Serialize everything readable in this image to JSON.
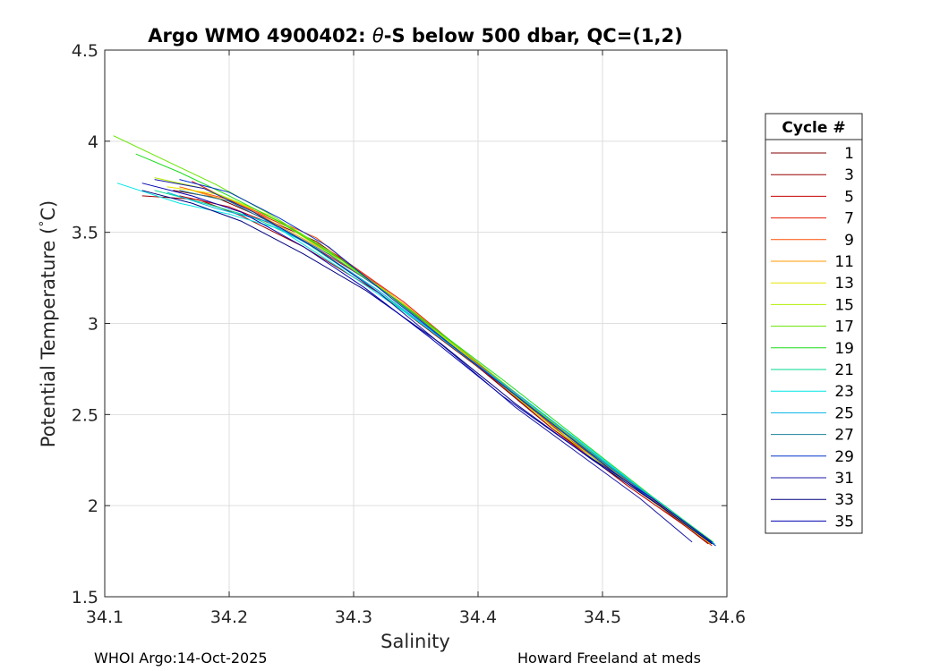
{
  "chart_data": {
    "type": "line",
    "title": {
      "prefix": "Argo WMO 4900402: ",
      "theta": "θ",
      "suffix": "-S below 500 dbar,  QC=(1,2)"
    },
    "xlabel": "Salinity",
    "ylabel": {
      "main": "Potential Temperature (",
      "deg": "°",
      "unit": "C)"
    },
    "xlim": [
      34.1,
      34.6
    ],
    "ylim": [
      1.5,
      4.5
    ],
    "xticks": [
      "34.1",
      "34.2",
      "34.3",
      "34.4",
      "34.5",
      "34.6"
    ],
    "yticks": [
      "1.5",
      "2",
      "2.5",
      "3",
      "3.5",
      "4",
      "4.5"
    ],
    "grid": true,
    "legend": {
      "title": "Cycle #",
      "position": "right-outside"
    },
    "series": [
      {
        "name": "1",
        "color": "#800000",
        "points": [
          [
            34.155,
            3.73
          ],
          [
            34.19,
            3.69
          ],
          [
            34.22,
            3.6
          ],
          [
            34.27,
            3.45
          ],
          [
            34.33,
            3.16
          ],
          [
            34.4,
            2.76
          ],
          [
            34.46,
            2.42
          ],
          [
            34.52,
            2.13
          ],
          [
            34.586,
            1.79
          ]
        ]
      },
      {
        "name": "3",
        "color": "#9a0000",
        "points": [
          [
            34.13,
            3.7
          ],
          [
            34.175,
            3.68
          ],
          [
            34.21,
            3.59
          ],
          [
            34.26,
            3.42
          ],
          [
            34.32,
            3.17
          ],
          [
            34.4,
            2.76
          ],
          [
            34.47,
            2.39
          ],
          [
            34.53,
            2.08
          ],
          [
            34.585,
            1.79
          ]
        ]
      },
      {
        "name": "5",
        "color": "#c80000",
        "points": [
          [
            34.16,
            3.7
          ],
          [
            34.2,
            3.64
          ],
          [
            34.24,
            3.53
          ],
          [
            34.28,
            3.37
          ],
          [
            34.33,
            3.16
          ],
          [
            34.4,
            2.77
          ],
          [
            34.46,
            2.42
          ],
          [
            34.52,
            2.11
          ],
          [
            34.587,
            1.79
          ]
        ]
      },
      {
        "name": "7",
        "color": "#e61a00",
        "points": [
          [
            34.17,
            3.78
          ],
          [
            34.205,
            3.66
          ],
          [
            34.25,
            3.52
          ],
          [
            34.29,
            3.36
          ],
          [
            34.34,
            3.12
          ],
          [
            34.4,
            2.78
          ],
          [
            34.47,
            2.38
          ],
          [
            34.53,
            2.09
          ],
          [
            34.588,
            1.78
          ]
        ]
      },
      {
        "name": "9",
        "color": "#ff4d00",
        "points": [
          [
            34.16,
            3.75
          ],
          [
            34.2,
            3.68
          ],
          [
            34.24,
            3.56
          ],
          [
            34.27,
            3.47
          ],
          [
            34.3,
            3.31
          ],
          [
            34.35,
            3.04
          ],
          [
            34.42,
            2.67
          ],
          [
            34.48,
            2.35
          ],
          [
            34.54,
            2.04
          ],
          [
            34.588,
            1.8
          ]
        ]
      },
      {
        "name": "11",
        "color": "#ff9900",
        "points": [
          [
            34.17,
            3.73
          ],
          [
            34.21,
            3.65
          ],
          [
            34.25,
            3.5
          ],
          [
            34.29,
            3.35
          ],
          [
            34.34,
            3.11
          ],
          [
            34.41,
            2.73
          ],
          [
            34.48,
            2.35
          ],
          [
            34.54,
            2.04
          ],
          [
            34.588,
            1.79
          ]
        ]
      },
      {
        "name": "13",
        "color": "#e6e600",
        "points": [
          [
            34.15,
            3.75
          ],
          [
            34.19,
            3.71
          ],
          [
            34.23,
            3.6
          ],
          [
            34.27,
            3.43
          ],
          [
            34.33,
            3.16
          ],
          [
            34.4,
            2.77
          ],
          [
            34.47,
            2.39
          ],
          [
            34.53,
            2.08
          ],
          [
            34.587,
            1.79
          ]
        ]
      },
      {
        "name": "15",
        "color": "#b3f000",
        "points": [
          [
            34.14,
            3.8
          ],
          [
            34.18,
            3.74
          ],
          [
            34.22,
            3.63
          ],
          [
            34.26,
            3.48
          ],
          [
            34.32,
            3.2
          ],
          [
            34.4,
            2.77
          ],
          [
            34.46,
            2.43
          ],
          [
            34.52,
            2.12
          ],
          [
            34.587,
            1.8
          ]
        ]
      },
      {
        "name": "17",
        "color": "#66e600",
        "points": [
          [
            34.107,
            4.03
          ],
          [
            34.15,
            3.89
          ],
          [
            34.19,
            3.76
          ],
          [
            34.23,
            3.61
          ],
          [
            34.28,
            3.4
          ],
          [
            34.34,
            3.1
          ],
          [
            34.41,
            2.73
          ],
          [
            34.47,
            2.4
          ],
          [
            34.53,
            2.09
          ],
          [
            34.588,
            1.8
          ]
        ]
      },
      {
        "name": "19",
        "color": "#1adc1a",
        "points": [
          [
            34.125,
            3.93
          ],
          [
            34.16,
            3.83
          ],
          [
            34.2,
            3.7
          ],
          [
            34.24,
            3.56
          ],
          [
            34.29,
            3.35
          ],
          [
            34.35,
            3.05
          ],
          [
            34.42,
            2.69
          ],
          [
            34.48,
            2.37
          ],
          [
            34.54,
            2.05
          ],
          [
            34.589,
            1.8
          ]
        ]
      },
      {
        "name": "21",
        "color": "#00d98c",
        "points": [
          [
            34.14,
            3.73
          ],
          [
            34.18,
            3.66
          ],
          [
            34.22,
            3.58
          ],
          [
            34.26,
            3.45
          ],
          [
            34.31,
            3.22
          ],
          [
            34.37,
            2.92
          ],
          [
            34.43,
            2.61
          ],
          [
            34.49,
            2.29
          ],
          [
            34.55,
            2.0
          ],
          [
            34.59,
            1.79
          ]
        ]
      },
      {
        "name": "23",
        "color": "#00e6e6",
        "points": [
          [
            34.11,
            3.77
          ],
          [
            34.16,
            3.66
          ],
          [
            34.2,
            3.6
          ],
          [
            34.24,
            3.52
          ],
          [
            34.29,
            3.3
          ],
          [
            34.35,
            3.02
          ],
          [
            34.42,
            2.67
          ],
          [
            34.49,
            2.31
          ],
          [
            34.55,
            1.99
          ],
          [
            34.59,
            1.79
          ]
        ]
      },
      {
        "name": "25",
        "color": "#00b3e6",
        "points": [
          [
            34.15,
            3.72
          ],
          [
            34.19,
            3.63
          ],
          [
            34.23,
            3.56
          ],
          [
            34.27,
            3.41
          ],
          [
            34.32,
            3.18
          ],
          [
            34.38,
            2.87
          ],
          [
            34.44,
            2.57
          ],
          [
            34.5,
            2.25
          ],
          [
            34.55,
            1.99
          ],
          [
            34.59,
            1.79
          ]
        ]
      },
      {
        "name": "27",
        "color": "#1a8099",
        "points": [
          [
            34.16,
            3.73
          ],
          [
            34.2,
            3.67
          ],
          [
            34.24,
            3.53
          ],
          [
            34.28,
            3.38
          ],
          [
            34.33,
            3.15
          ],
          [
            34.39,
            2.82
          ],
          [
            34.45,
            2.5
          ],
          [
            34.51,
            2.19
          ],
          [
            34.56,
            1.94
          ],
          [
            34.591,
            1.78
          ]
        ]
      },
      {
        "name": "29",
        "color": "#0033cc",
        "points": [
          [
            34.16,
            3.79
          ],
          [
            34.2,
            3.72
          ],
          [
            34.24,
            3.58
          ],
          [
            34.28,
            3.42
          ],
          [
            34.33,
            3.14
          ],
          [
            34.39,
            2.82
          ],
          [
            34.45,
            2.5
          ],
          [
            34.51,
            2.18
          ],
          [
            34.57,
            1.88
          ],
          [
            34.591,
            1.78
          ]
        ]
      },
      {
        "name": "31",
        "color": "#1a1aa6",
        "points": [
          [
            34.14,
            3.79
          ],
          [
            34.18,
            3.74
          ],
          [
            34.22,
            3.61
          ],
          [
            34.27,
            3.41
          ],
          [
            34.32,
            3.17
          ],
          [
            34.38,
            2.83
          ],
          [
            34.43,
            2.54
          ],
          [
            34.48,
            2.29
          ],
          [
            34.53,
            2.04
          ],
          [
            34.572,
            1.8
          ]
        ]
      },
      {
        "name": "33",
        "color": "#000080",
        "points": [
          [
            34.13,
            3.73
          ],
          [
            34.17,
            3.66
          ],
          [
            34.21,
            3.56
          ],
          [
            34.26,
            3.38
          ],
          [
            34.31,
            3.18
          ],
          [
            34.37,
            2.89
          ],
          [
            34.43,
            2.56
          ],
          [
            34.49,
            2.26
          ],
          [
            34.55,
            1.98
          ],
          [
            34.588,
            1.79
          ]
        ]
      },
      {
        "name": "35",
        "color": "#0000b3",
        "points": [
          [
            34.13,
            3.77
          ],
          [
            34.17,
            3.7
          ],
          [
            34.21,
            3.61
          ],
          [
            34.26,
            3.42
          ],
          [
            34.31,
            3.19
          ],
          [
            34.36,
            2.93
          ],
          [
            34.42,
            2.6
          ],
          [
            34.48,
            2.31
          ],
          [
            34.54,
            2.04
          ],
          [
            34.588,
            1.8
          ]
        ]
      }
    ]
  },
  "footer": {
    "left": "WHOI Argo:14-Oct-2025",
    "right": "Howard Freeland at meds"
  }
}
